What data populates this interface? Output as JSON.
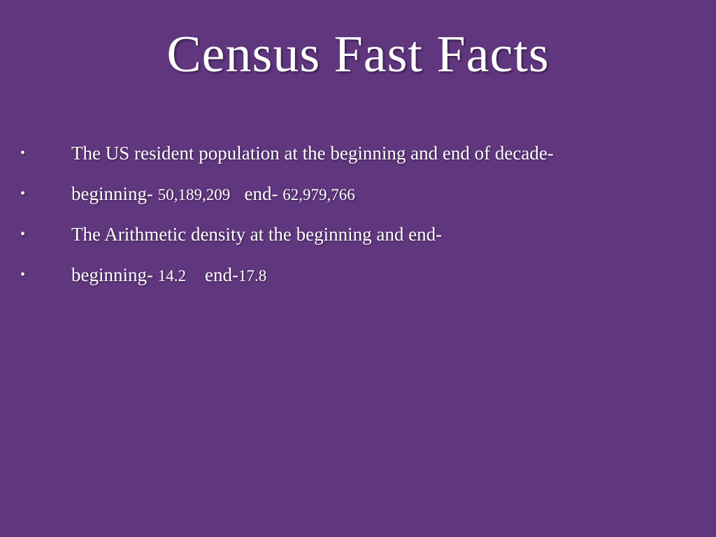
{
  "slide": {
    "title": "Census Fast Facts",
    "bullet_symbol": "•",
    "bullets": [
      {
        "text": "The US resident population at the beginning and end of decade-"
      },
      {
        "label1": "beginning- ",
        "value1": "50,189,209",
        "label2": "   end- ",
        "value2": "62,979,766"
      },
      {
        "text": "The Arithmetic density at the beginning and end-"
      },
      {
        "label1": "beginning- ",
        "value1": "14.2",
        "label2": "    end-",
        "value2": "17.8"
      }
    ]
  },
  "colors": {
    "background": "#60367e",
    "text": "#ffffff"
  }
}
